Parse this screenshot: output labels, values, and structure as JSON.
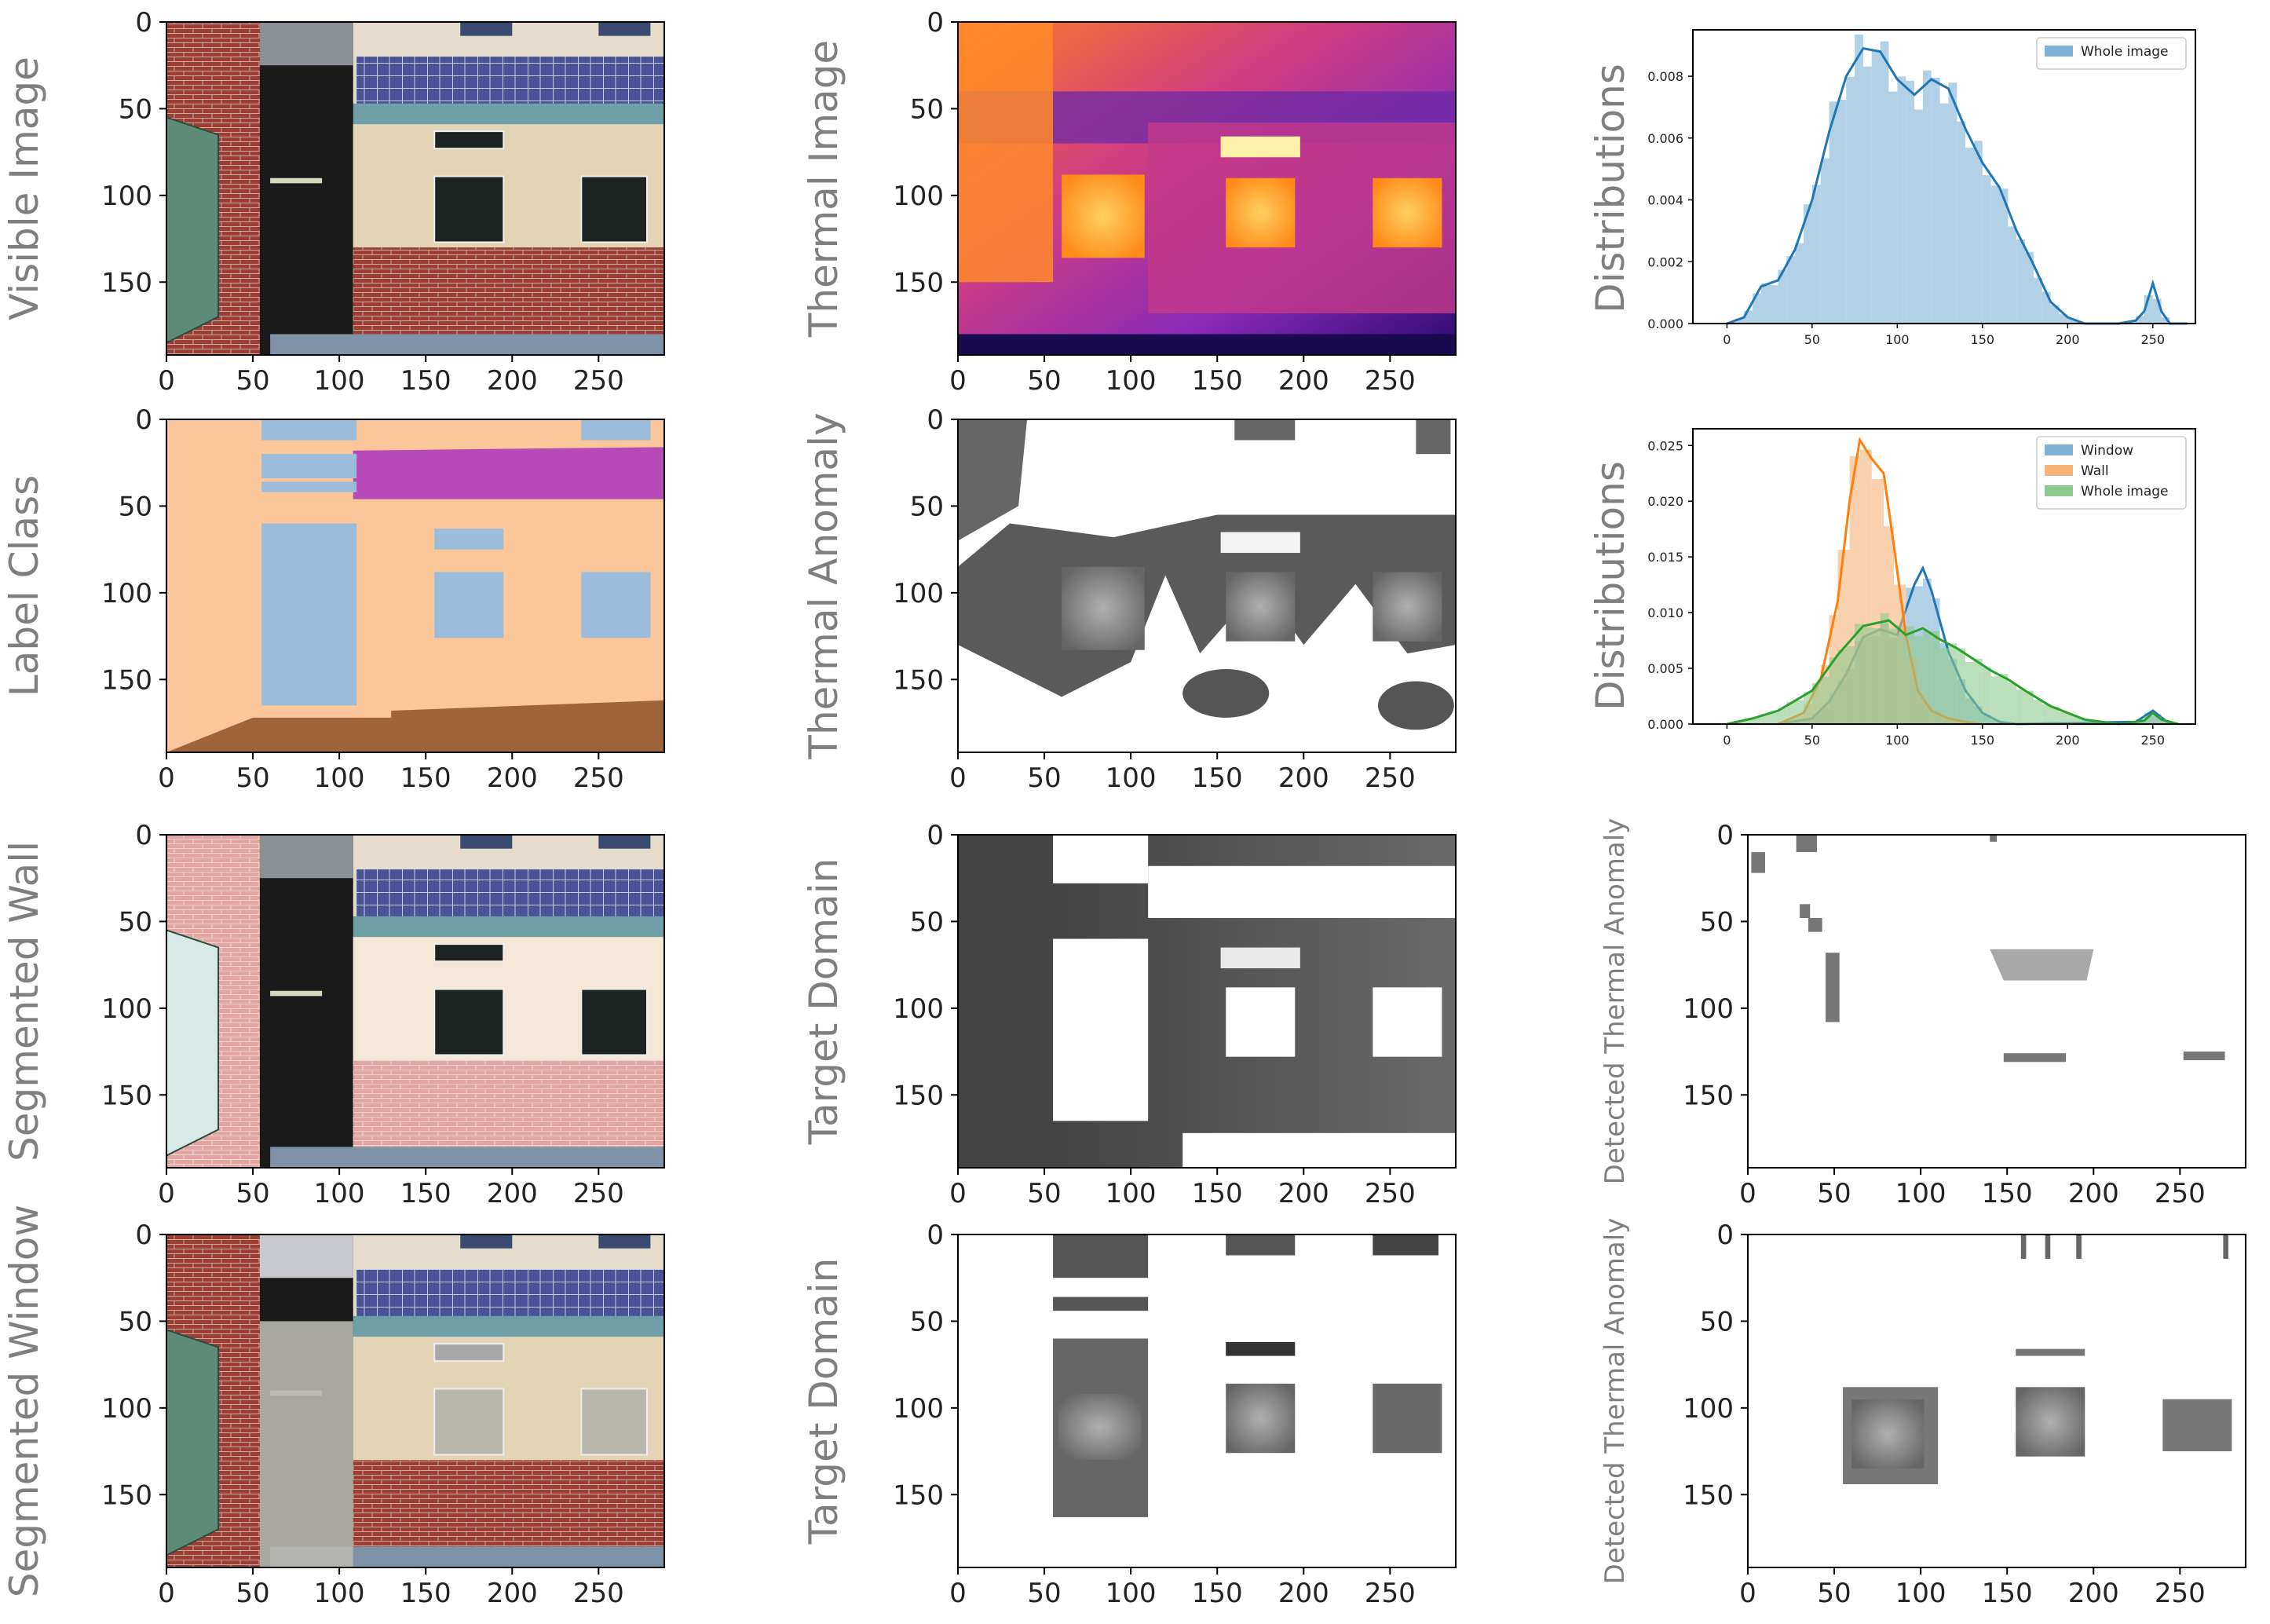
{
  "figure": {
    "row_labels": [
      [
        "Visible Image",
        "Thermal Image",
        "Distributions"
      ],
      [
        "Label Class",
        "Thermal Anomaly",
        "Distributions"
      ],
      [
        "Segmented Wall",
        "Target Domain",
        "Detected Thermal Anomaly"
      ],
      [
        "Segmented Window",
        "Target Domain",
        "Detected Thermal Anomaly"
      ]
    ],
    "image_axes": {
      "x_ticks": [
        "0",
        "50",
        "100",
        "150",
        "200",
        "250"
      ],
      "y_ticks": [
        "0",
        "50",
        "100",
        "150"
      ],
      "x_range": [
        0,
        288
      ],
      "y_range": [
        0,
        192
      ]
    }
  },
  "chart_data": [
    {
      "type": "area",
      "panel": "row1-distributions",
      "title": "",
      "xlabel": "",
      "ylabel": "",
      "xlim": [
        -20,
        275
      ],
      "ylim": [
        0,
        0.0095
      ],
      "x_ticks": [
        "0",
        "50",
        "100",
        "150",
        "200",
        "250"
      ],
      "y_ticks": [
        "0.000",
        "0.002",
        "0.004",
        "0.006",
        "0.008"
      ],
      "legend": "top-right",
      "series": [
        {
          "name": "Whole image",
          "color": "#7fb0d6",
          "line_color": "#1f77b4",
          "x": [
            0,
            10,
            20,
            30,
            40,
            50,
            60,
            70,
            80,
            90,
            100,
            110,
            120,
            130,
            140,
            150,
            160,
            170,
            180,
            190,
            200,
            210,
            220,
            230,
            240,
            245,
            250,
            255,
            260,
            270
          ],
          "y": [
            0.0,
            0.0002,
            0.0012,
            0.0014,
            0.0024,
            0.004,
            0.0062,
            0.008,
            0.0089,
            0.0088,
            0.0079,
            0.0074,
            0.0079,
            0.0076,
            0.0063,
            0.0052,
            0.0044,
            0.003,
            0.0019,
            0.0007,
            0.0002,
            0.0,
            0.0,
            0.0,
            0.0001,
            0.0004,
            0.0013,
            0.0004,
            0.0,
            0.0
          ]
        }
      ]
    },
    {
      "type": "area",
      "panel": "row2-distributions",
      "title": "",
      "xlabel": "",
      "ylabel": "",
      "xlim": [
        -20,
        275
      ],
      "ylim": [
        0,
        0.0265
      ],
      "x_ticks": [
        "0",
        "50",
        "100",
        "150",
        "200",
        "250"
      ],
      "y_ticks": [
        "0.000",
        "0.005",
        "0.010",
        "0.015",
        "0.020",
        "0.025"
      ],
      "legend": "top-right",
      "series": [
        {
          "name": "Window",
          "color": "#7fb0d6",
          "line_color": "#1f77b4",
          "x": [
            30,
            50,
            60,
            70,
            80,
            90,
            100,
            110,
            115,
            120,
            130,
            140,
            150,
            160,
            170,
            240,
            250,
            260
          ],
          "y": [
            0.0,
            0.0005,
            0.002,
            0.0045,
            0.0078,
            0.0085,
            0.008,
            0.0125,
            0.014,
            0.012,
            0.0065,
            0.003,
            0.001,
            0.0002,
            0.0,
            0.0002,
            0.0012,
            0.0
          ]
        },
        {
          "name": "Wall",
          "color": "#f5b27a",
          "line_color": "#ff7f0e",
          "x": [
            30,
            45,
            55,
            65,
            72,
            78,
            85,
            92,
            98,
            105,
            112,
            120,
            130,
            140,
            150
          ],
          "y": [
            0.0,
            0.001,
            0.004,
            0.011,
            0.02,
            0.0255,
            0.0238,
            0.0225,
            0.016,
            0.008,
            0.003,
            0.0012,
            0.0005,
            0.0002,
            0.0
          ]
        },
        {
          "name": "Whole image",
          "color": "#8cc98c",
          "line_color": "#2ca02c",
          "x": [
            0,
            15,
            30,
            50,
            65,
            80,
            95,
            105,
            115,
            125,
            135,
            145,
            155,
            165,
            175,
            190,
            210,
            230,
            245,
            250,
            255,
            265
          ],
          "y": [
            0.0,
            0.0005,
            0.0012,
            0.003,
            0.0062,
            0.0088,
            0.0093,
            0.008,
            0.0086,
            0.0076,
            0.0068,
            0.0058,
            0.0048,
            0.004,
            0.003,
            0.0016,
            0.0004,
            0.0,
            0.0003,
            0.001,
            0.0004,
            0.0
          ]
        }
      ]
    }
  ]
}
